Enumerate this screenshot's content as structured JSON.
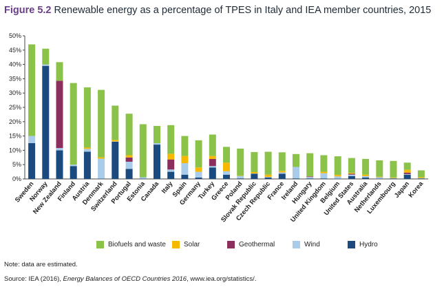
{
  "header": {
    "figure_number": "Figure 5.2",
    "title": "Renewable energy as a percentage of TPES in Italy and IEA member countries, 2015"
  },
  "footer": {
    "note": "Note: data are estimated.",
    "source_prefix": "Source: IEA (2016), ",
    "source_italic": "Energy Balances of OECD Countries 2016",
    "source_suffix": ", www.iea.org/statistics/."
  },
  "colors": {
    "Hydro": "#1b4a7e",
    "Wind": "#a8cce9",
    "Geothermal": "#8c2f5c",
    "Solar": "#f6b800",
    "Biofuels and waste": "#8bc34a"
  },
  "chart_data": {
    "type": "bar",
    "stacked": true,
    "categories": [
      "Sweden",
      "Norway",
      "New Zealand",
      "Finland",
      "Austria",
      "Denmark",
      "Switzerland",
      "Portugal",
      "Estonia",
      "Canada",
      "Italy",
      "Spain",
      "Germany",
      "Turkey",
      "Greece",
      "Poland",
      "Slovak Republic",
      "Czech Republic",
      "France",
      "Ireland",
      "Hungary",
      "United Kingdom",
      "Belgium",
      "United States",
      "Australia",
      "Netherlands",
      "Luxembourg",
      "Japan",
      "Korea"
    ],
    "series": [
      {
        "name": "Hydro",
        "values": [
          12.5,
          39.5,
          10.0,
          4.5,
          9.5,
          0.1,
          13.0,
          3.5,
          0.1,
          12.0,
          2.5,
          1.5,
          0.5,
          4.0,
          1.5,
          0.2,
          1.8,
          0.5,
          1.8,
          0.2,
          0.2,
          0.2,
          0.1,
          1.0,
          0.5,
          0.1,
          0.2,
          1.5,
          0.2
        ]
      },
      {
        "name": "Wind",
        "values": [
          2.5,
          0.5,
          0.8,
          0.5,
          1.0,
          7.0,
          0.1,
          2.5,
          0.5,
          0.5,
          0.8,
          4.0,
          2.0,
          0.5,
          1.2,
          0.8,
          0.1,
          0.2,
          0.5,
          4.0,
          0.5,
          1.8,
          0.8,
          0.5,
          0.5,
          0.5,
          0.1,
          0.2,
          0.1
        ]
      },
      {
        "name": "Geothermal",
        "values": [
          0.0,
          0.0,
          23.5,
          0.0,
          0.0,
          0.0,
          0.0,
          1.5,
          0.0,
          0.0,
          3.5,
          0.0,
          0.0,
          2.5,
          0.0,
          0.0,
          0.0,
          0.0,
          0.0,
          0.0,
          0.2,
          0.0,
          0.0,
          0.3,
          0.0,
          0.0,
          0.0,
          0.5,
          0.0
        ]
      },
      {
        "name": "Solar",
        "values": [
          0.0,
          0.0,
          0.0,
          0.0,
          0.5,
          0.5,
          0.5,
          0.8,
          0.0,
          0.0,
          2.0,
          2.5,
          1.5,
          1.0,
          3.0,
          0.1,
          0.5,
          0.8,
          0.5,
          0.0,
          0.1,
          0.5,
          0.5,
          0.3,
          0.5,
          0.2,
          0.2,
          1.0,
          0.3
        ]
      },
      {
        "name": "Biofuels and waste",
        "values": [
          32.0,
          5.5,
          6.5,
          28.5,
          21.0,
          23.5,
          12.0,
          14.5,
          18.5,
          6.0,
          10.0,
          7.0,
          9.5,
          7.5,
          5.5,
          9.5,
          7.0,
          8.0,
          6.5,
          4.5,
          8.0,
          5.8,
          6.5,
          5.2,
          5.5,
          5.7,
          5.8,
          2.5,
          2.4
        ]
      }
    ],
    "legend_order": [
      "Biofuels and waste",
      "Solar",
      "Geothermal",
      "Wind",
      "Hydro"
    ],
    "yticks": [
      "0%",
      "5%",
      "10%",
      "15%",
      "20%",
      "25%",
      "30%",
      "35%",
      "40%",
      "45%",
      "50%"
    ],
    "ylim": [
      0,
      50
    ],
    "grid": false,
    "legend_position": "bottom"
  }
}
